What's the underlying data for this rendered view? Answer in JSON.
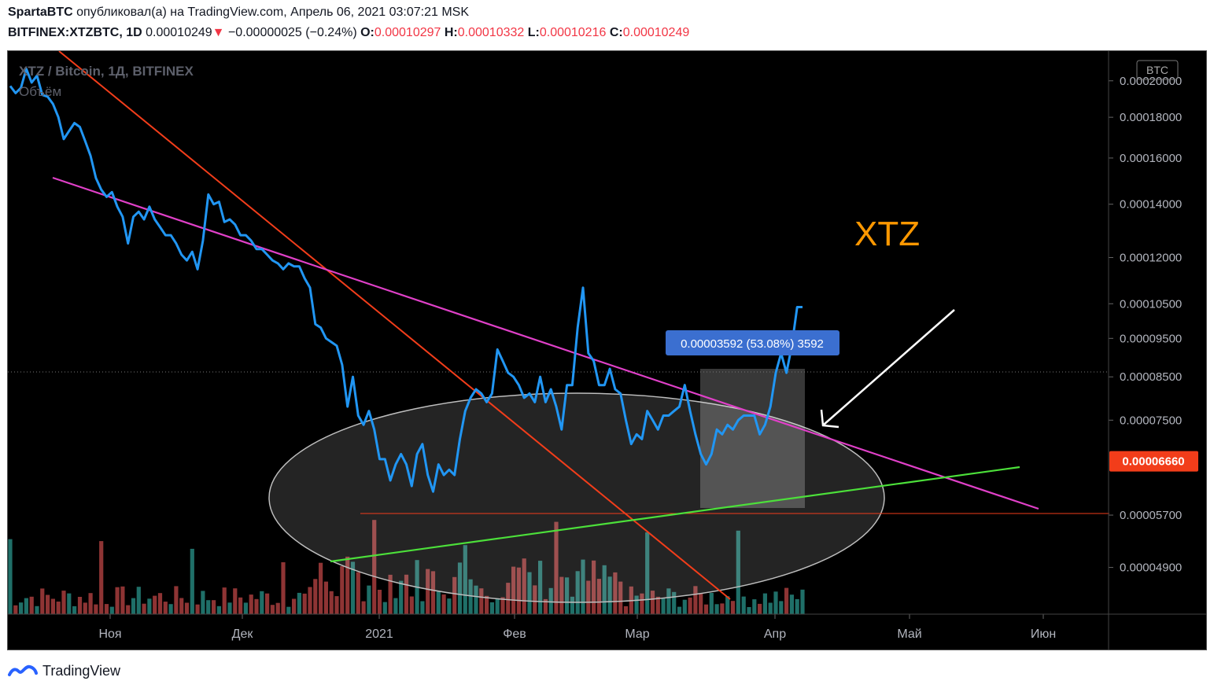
{
  "header": {
    "author": "SpartaBTC",
    "published_text": "опубликовал(а) на TradingView.com, Апрель 06, 2021 03:07:21 MSK",
    "symbol": "BITFINEX:XTZBTC, 1D",
    "last": "0.00010249",
    "change": "−0.00000025 (−0.24%)",
    "o_label": "O:",
    "o": "0.00010297",
    "h_label": "H:",
    "h": "0.00010332",
    "l_label": "L:",
    "l": "0.00010216",
    "c_label": "C:",
    "c": "0.00010249"
  },
  "legend": {
    "title": "XTZ / Bitcoin, 1Д, BITFINEX",
    "volume": "Объём"
  },
  "annotation": {
    "big_label": "XTZ",
    "measure_label": "0.00003592 (53.08%) 3592"
  },
  "footer": {
    "brand": "TradingView"
  },
  "colors": {
    "price_line": "#2196f3",
    "pink_trend": "#e040c8",
    "red_trend": "#f23d1a",
    "green_trend": "#4ce03a",
    "vol_up": "#26a69a",
    "vol_down": "#ef5350",
    "label_orange": "#ff9800",
    "price_tag": "#f23d1a"
  },
  "chart_data": {
    "type": "line",
    "currency_badge": "BTC",
    "x_ticks": [
      "Ноя",
      "Дек",
      "2021",
      "Фев",
      "Мар",
      "Апр",
      "Май",
      "Июн"
    ],
    "y_ticks": [
      "0.00020000",
      "0.00018000",
      "0.00016000",
      "0.00014000",
      "0.00012000",
      "0.00010500",
      "0.00009500",
      "0.00008500",
      "0.00007500",
      "0.00005700",
      "0.00004900"
    ],
    "y_tick_values": [
      0.0002,
      0.00018,
      0.00016,
      0.00014,
      0.00012,
      0.000105,
      9.5e-05,
      8.5e-05,
      7.5e-05,
      5.7e-05,
      4.9e-05
    ],
    "y_scale": "log",
    "ylim": [
      4.33e-05,
      0.000214
    ],
    "last_price_label": "0.00006660",
    "last_price_value": 6.66e-05,
    "series": [
      {
        "values": [
          0.000197,
          0.000193,
          0.000196,
          0.000207,
          0.000199,
          0.000203,
          0.000192,
          0.000191,
          0.000187,
          0.00018,
          0.000169,
          0.000173,
          0.000177,
          0.000175,
          0.000168,
          0.000161,
          0.000151,
          0.000146,
          0.000143,
          0.000145,
          0.000139,
          0.000135,
          0.000125,
          0.000135,
          0.000137,
          0.000134,
          0.000139,
          0.000134,
          0.000131,
          0.000128,
          0.000128,
          0.000125,
          0.000121,
          0.000119,
          0.000122,
          0.000116,
          0.000126,
          0.000144,
          0.00014,
          0.000141,
          0.000133,
          0.000134,
          0.000132,
          0.000128,
          0.000128,
          0.000126,
          0.000123,
          0.000123,
          0.000121,
          0.000119,
          0.000118,
          0.000116,
          0.000118,
          0.000117,
          0.000117,
          0.000113,
          0.00011,
          9.9e-05,
          9.8e-05,
          9.5e-05,
          9.4e-05,
          9.3e-05,
          8.8e-05,
          7.8e-05,
          8.5e-05,
          7.6e-05,
          7.4e-05,
          7.7e-05,
          7.3e-05,
          6.7e-05,
          6.7e-05,
          6.3e-05,
          6.6e-05,
          6.8e-05,
          6.6e-05,
          6.2e-05,
          6.8e-05,
          7e-05,
          6.4e-05,
          6.1e-05,
          6.6e-05,
          6.4e-05,
          6.5e-05,
          6.4e-05,
          7.1e-05,
          7.7e-05,
          8e-05,
          8.2e-05,
          8.1e-05,
          7.9e-05,
          8.1e-05,
          9.2e-05,
          8.9e-05,
          8.6e-05,
          8.5e-05,
          8.3e-05,
          8e-05,
          8.1e-05,
          7.9e-05,
          8.5e-05,
          7.9e-05,
          8.2e-05,
          7.8e-05,
          7.3e-05,
          8.3e-05,
          8.3e-05,
          9.8e-05,
          0.00011,
          9.1e-05,
          8.9e-05,
          8.3e-05,
          8.3e-05,
          8.7e-05,
          8.2e-05,
          8.1e-05,
          7.5e-05,
          7e-05,
          7.2e-05,
          7.1e-05,
          7.7e-05,
          7.5e-05,
          7.3e-05,
          7.6e-05,
          7.6e-05,
          7.7e-05,
          7.8e-05,
          8.3e-05,
          7.7e-05,
          7.2e-05,
          6.8e-05,
          6.6e-05,
          6.8e-05,
          7.3e-05,
          7.2e-05,
          7.4e-05,
          7.3e-05,
          7.5e-05,
          7.6e-05,
          7.6e-05,
          7.6e-05,
          7.2e-05,
          7.4e-05,
          7.8e-05,
          8.6e-05,
          9.1e-05,
          8.6e-05,
          9.3e-05,
          0.000104,
          0.000104
        ]
      }
    ]
  }
}
